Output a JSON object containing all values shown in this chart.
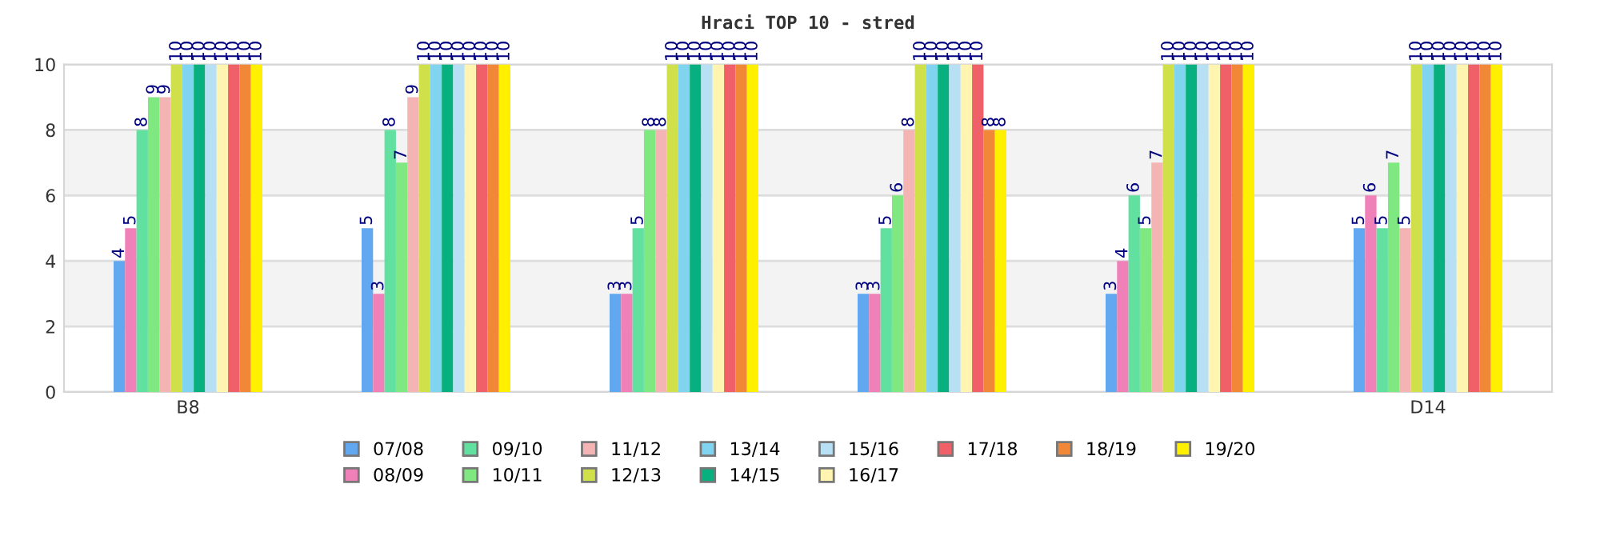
{
  "chart_data": {
    "type": "bar",
    "title": "Hraci TOP 10 - stred",
    "categories": [
      "B8",
      null,
      null,
      null,
      null,
      "D14"
    ],
    "series": [
      {
        "name": "07/08",
        "color": "#62a8f0",
        "values": [
          4,
          5,
          3,
          3,
          3,
          5
        ]
      },
      {
        "name": "08/09",
        "color": "#f080b8",
        "values": [
          5,
          3,
          3,
          3,
          4,
          6
        ]
      },
      {
        "name": "09/10",
        "color": "#62e0a0",
        "values": [
          8,
          8,
          5,
          5,
          6,
          5
        ]
      },
      {
        "name": "10/11",
        "color": "#80e880",
        "values": [
          9,
          7,
          8,
          6,
          5,
          7
        ]
      },
      {
        "name": "11/12",
        "color": "#f4b4b4",
        "values": [
          9,
          9,
          8,
          8,
          7,
          5
        ]
      },
      {
        "name": "12/13",
        "color": "#d0e04a",
        "values": [
          10,
          10,
          10,
          10,
          10,
          10
        ]
      },
      {
        "name": "13/14",
        "color": "#80d4f0",
        "values": [
          10,
          10,
          10,
          10,
          10,
          10
        ]
      },
      {
        "name": "14/15",
        "color": "#08b080",
        "values": [
          10,
          10,
          10,
          10,
          10,
          10
        ]
      },
      {
        "name": "15/16",
        "color": "#b8e0f4",
        "values": [
          10,
          10,
          10,
          10,
          10,
          10
        ]
      },
      {
        "name": "16/17",
        "color": "#fff4b0",
        "values": [
          10,
          10,
          10,
          10,
          10,
          10
        ]
      },
      {
        "name": "17/18",
        "color": "#f06068",
        "values": [
          10,
          10,
          10,
          10,
          10,
          10
        ]
      },
      {
        "name": "18/19",
        "color": "#f08838",
        "values": [
          10,
          10,
          10,
          8,
          10,
          10
        ]
      },
      {
        "name": "19/20",
        "color": "#fff000",
        "values": [
          10,
          10,
          10,
          8,
          10,
          10
        ]
      }
    ],
    "ylim": [
      0,
      10
    ],
    "yticks": [
      0,
      2,
      4,
      6,
      8,
      10
    ],
    "bands": [
      {
        "axis": "y",
        "from": 2,
        "to": 4,
        "color": "#f3f3f3"
      },
      {
        "axis": "y",
        "from": 6,
        "to": 8,
        "color": "#f3f3f3"
      }
    ],
    "grid": "y",
    "data_labels": true,
    "legend": "bottom"
  }
}
